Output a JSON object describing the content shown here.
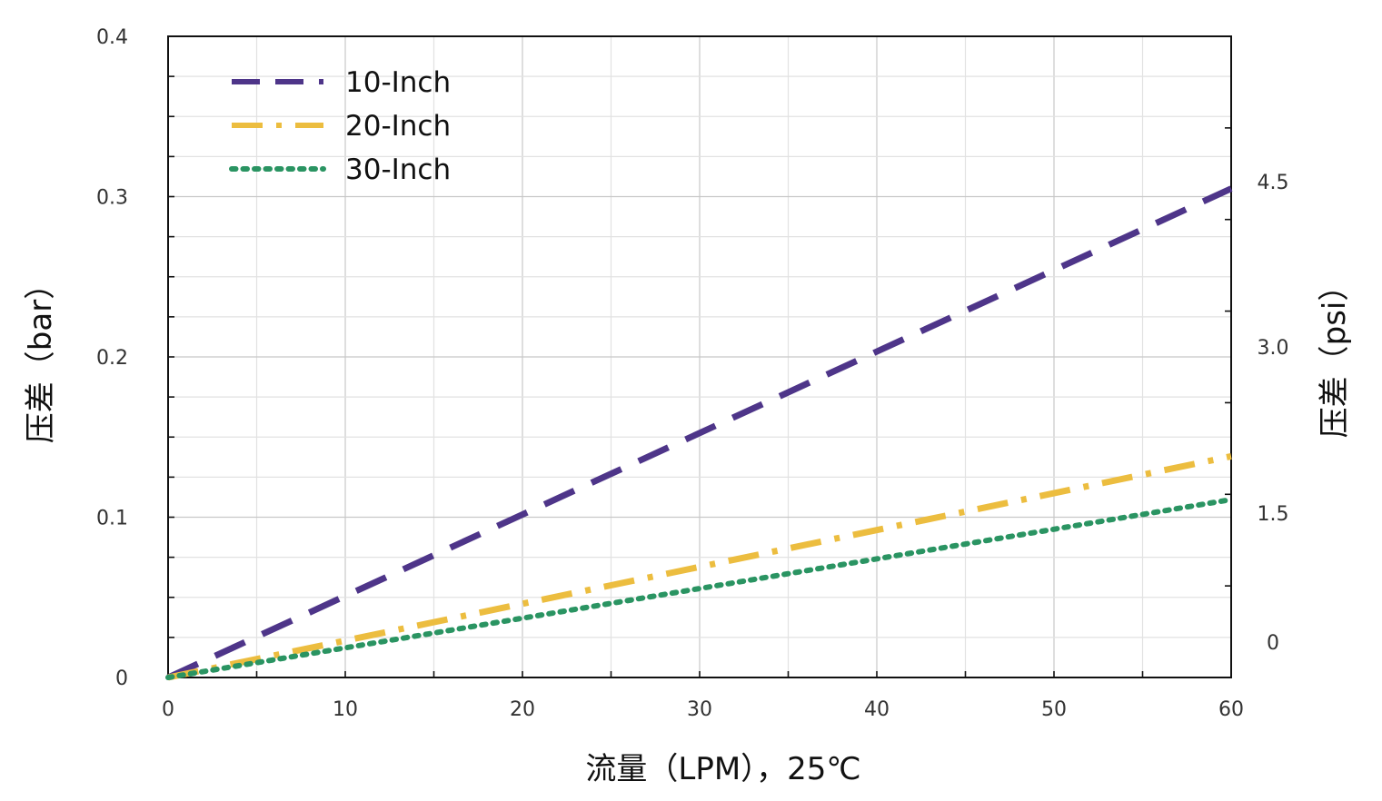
{
  "chart_data": {
    "type": "line",
    "title": "",
    "xlabel": "流量（LPM），25℃",
    "ylabel": "压差（bar）",
    "ylabel_right": "压差（psi）",
    "xlim": [
      0,
      60
    ],
    "ylim": [
      0,
      0.4
    ],
    "x_ticks": [
      "0",
      "10",
      "20",
      "30",
      "40",
      "50",
      "60"
    ],
    "y_ticks": [
      "0",
      "0.1",
      "0.2",
      "0.3",
      "0.4"
    ],
    "y_right_ticks": [
      "0",
      "1.5",
      "3.0",
      "4.5"
    ],
    "grid": true,
    "legend_position": "top-left",
    "series": [
      {
        "name": "10-Inch",
        "color": "#4e3589",
        "style": "dashed",
        "x": [
          0,
          60
        ],
        "y": [
          0,
          0.305
        ]
      },
      {
        "name": "20-Inch",
        "color": "#ecbd3f",
        "style": "dash-dot",
        "x": [
          0,
          60
        ],
        "y": [
          0,
          0.138
        ]
      },
      {
        "name": "30-Inch",
        "color": "#2a9462",
        "style": "dotted",
        "x": [
          0,
          60
        ],
        "y": [
          0,
          0.111
        ]
      }
    ]
  }
}
